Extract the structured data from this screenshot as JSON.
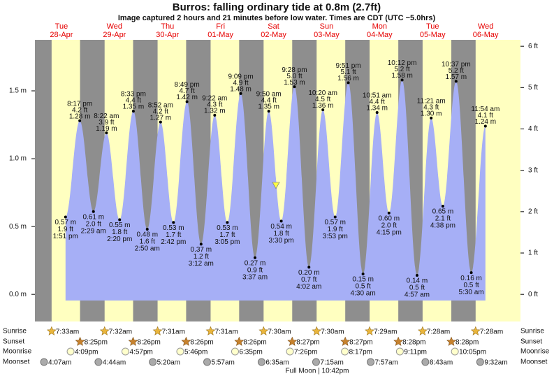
{
  "chart_data": {
    "type": "area",
    "title": "Burros: falling  ordinary tide at 0.8m (2.7ft)",
    "subtitle": "Image captured 2 hours and 21 minutes before low water. Times are CDT (UTC −5.0hrs)",
    "ylim": [
      -0.2,
      1.876
    ],
    "yticks": [
      {
        "value": 0,
        "label": "0.0 m"
      },
      {
        "value": 0.5,
        "label": "0.5 m"
      },
      {
        "value": 1,
        "label": "1.0 m"
      },
      {
        "value": 1.5,
        "label": "1.5 m"
      }
    ],
    "y2lim": [
      -0.656,
      6.155
    ],
    "y2ticks": [
      {
        "value": 0,
        "label": "0 ft"
      },
      {
        "value": 1,
        "label": "1 ft"
      },
      {
        "value": 2,
        "label": "2 ft"
      },
      {
        "value": 3,
        "label": "3 ft"
      },
      {
        "value": 4,
        "label": "4 ft"
      },
      {
        "value": 5,
        "label": "5 ft"
      },
      {
        "value": 6,
        "label": "6 ft"
      }
    ],
    "current_m": 0.8,
    "colors": {
      "day": "#ffffc0",
      "night": "#8e8e8e",
      "water": "#a6aff6",
      "header": "#e60000"
    },
    "row_labels": {
      "sunrise": "Sunrise",
      "sunset": "Sunset",
      "moonrise": "Moonrise",
      "moonset": "Moonset"
    },
    "moon_phase": "Full Moon | 10:42pm",
    "days": [
      {
        "weekday": "Tue",
        "date": "28-Apr",
        "sunrise": "7:33am",
        "sunset": "8:25pm",
        "moonrise": "4:09pm",
        "moonset": "4:07am",
        "tides": [
          {
            "time": "1:51 pm",
            "height": {
              "value": 0.57,
              "label": "0.57 m"
            },
            "ft": "1.9 ft"
          },
          {
            "time": "8:17 pm",
            "height": {
              "value": 1.28,
              "label": "1.28 m"
            },
            "ft": "4.2 ft"
          }
        ]
      },
      {
        "weekday": "Wed",
        "date": "29-Apr",
        "sunrise": "7:32am",
        "sunset": "8:26pm",
        "moonrise": "4:57pm",
        "moonset": "4:44am",
        "tides": [
          {
            "time": "2:29 am",
            "height": {
              "value": 0.61,
              "label": "0.61 m"
            },
            "ft": "2.0 ft"
          },
          {
            "time": "8:22 am",
            "height": {
              "value": 1.19,
              "label": "1.19 m"
            },
            "ft": "3.9 ft"
          },
          {
            "time": "2:20 pm",
            "height": {
              "value": 0.55,
              "label": "0.55 m"
            },
            "ft": "1.8 ft"
          },
          {
            "time": "8:33 pm",
            "height": {
              "value": 1.35,
              "label": "1.35 m"
            },
            "ft": "4.4 ft"
          }
        ]
      },
      {
        "weekday": "Thu",
        "date": "30-Apr",
        "sunrise": "7:31am",
        "sunset": "8:26pm",
        "moonrise": "5:46pm",
        "moonset": "5:20am",
        "tides": [
          {
            "time": "2:50 am",
            "height": {
              "value": 0.48,
              "label": "0.48 m"
            },
            "ft": "1.6 ft"
          },
          {
            "time": "8:52 am",
            "height": {
              "value": 1.27,
              "label": "1.27 m"
            },
            "ft": "4.2 ft"
          },
          {
            "time": "2:42 pm",
            "height": {
              "value": 0.53,
              "label": "0.53 m"
            },
            "ft": "1.7 ft"
          },
          {
            "time": "8:49 pm",
            "height": {
              "value": 1.42,
              "label": "1.42 m"
            },
            "ft": "4.7 ft"
          }
        ]
      },
      {
        "weekday": "Fri",
        "date": "01-May",
        "sunrise": "7:31am",
        "sunset": "8:26pm",
        "moonrise": "6:35pm",
        "moonset": "5:57am",
        "tides": [
          {
            "time": "3:12 am",
            "height": {
              "value": 0.37,
              "label": "0.37 m"
            },
            "ft": "1.2 ft"
          },
          {
            "time": "9:22 am",
            "height": {
              "value": 1.32,
              "label": "1.32 m"
            },
            "ft": "4.3 ft"
          },
          {
            "time": "3:05 pm",
            "height": {
              "value": 0.53,
              "label": "0.53 m"
            },
            "ft": "1.7 ft"
          },
          {
            "time": "9:09 pm",
            "height": {
              "value": 1.48,
              "label": "1.48 m"
            },
            "ft": "4.9 ft"
          }
        ]
      },
      {
        "weekday": "Sat",
        "date": "02-May",
        "sunrise": "7:30am",
        "sunset": "8:27pm",
        "moonrise": "7:26pm",
        "moonset": "6:35am",
        "tides": [
          {
            "time": "3:37 am",
            "height": {
              "value": 0.27,
              "label": "0.27 m"
            },
            "ft": "0.9 ft"
          },
          {
            "time": "9:50 am",
            "height": {
              "value": 1.35,
              "label": "1.35 m"
            },
            "ft": "4.4 ft"
          },
          {
            "time": "3:30 pm",
            "height": {
              "value": 0.54,
              "label": "0.54 m"
            },
            "ft": "1.8 ft"
          },
          {
            "time": "9:28 pm",
            "height": {
              "value": 1.53,
              "label": "1.53 m"
            },
            "ft": "5.0 ft"
          }
        ]
      },
      {
        "weekday": "Sun",
        "date": "03-May",
        "sunrise": "7:30am",
        "sunset": "8:27pm",
        "moonrise": "8:17pm",
        "moonset": "7:15am",
        "tides": [
          {
            "time": "4:02 am",
            "height": {
              "value": 0.2,
              "label": "0.20 m"
            },
            "ft": "0.7 ft"
          },
          {
            "time": "10:20 am",
            "height": {
              "value": 1.36,
              "label": "1.36 m"
            },
            "ft": "4.5 ft"
          },
          {
            "time": "3:53 pm",
            "height": {
              "value": 0.57,
              "label": "0.57 m"
            },
            "ft": "1.9 ft"
          },
          {
            "time": "9:51 pm",
            "height": {
              "value": 1.56,
              "label": "1.56 m"
            },
            "ft": "5.1 ft"
          }
        ]
      },
      {
        "weekday": "Mon",
        "date": "04-May",
        "sunrise": "7:29am",
        "sunset": "8:28pm",
        "moonrise": "9:11pm",
        "moonset": "7:57am",
        "tides": [
          {
            "time": "4:30 am",
            "height": {
              "value": 0.15,
              "label": "0.15 m"
            },
            "ft": "0.5 ft"
          },
          {
            "time": "10:51 am",
            "height": {
              "value": 1.34,
              "label": "1.34 m"
            },
            "ft": "4.4 ft"
          },
          {
            "time": "4:15 pm",
            "height": {
              "value": 0.6,
              "label": "0.60 m"
            },
            "ft": "2.0 ft"
          },
          {
            "time": "10:12 pm",
            "height": {
              "value": 1.58,
              "label": "1.58 m"
            },
            "ft": "5.2 ft"
          }
        ]
      },
      {
        "weekday": "Tue",
        "date": "05-May",
        "sunrise": "7:28am",
        "sunset": "8:28pm",
        "moonrise": "10:05pm",
        "moonset": "8:43am",
        "tides": [
          {
            "time": "4:57 am",
            "height": {
              "value": 0.14,
              "label": "0.14 m"
            },
            "ft": "0.5 ft"
          },
          {
            "time": "11:21 am",
            "height": {
              "value": 1.3,
              "label": "1.30 m"
            },
            "ft": "4.3 ft"
          },
          {
            "time": "4:38 pm",
            "height": {
              "value": 0.65,
              "label": "0.65 m"
            },
            "ft": "2.1 ft"
          },
          {
            "time": "10:37 pm",
            "height": {
              "value": 1.57,
              "label": "1.57 m"
            },
            "ft": "5.2 ft"
          }
        ]
      },
      {
        "weekday": "Wed",
        "date": "06-May",
        "sunrise": "7:28am",
        "moonset": "9:32am",
        "tides": [
          {
            "time": "5:30 am",
            "height": {
              "value": 0.16,
              "label": "0.16 m"
            },
            "ft": "0.5 ft"
          },
          {
            "time": "11:54 am",
            "height": {
              "value": 1.24,
              "label": "1.24 m"
            },
            "ft": "4.1 ft"
          }
        ]
      }
    ]
  }
}
